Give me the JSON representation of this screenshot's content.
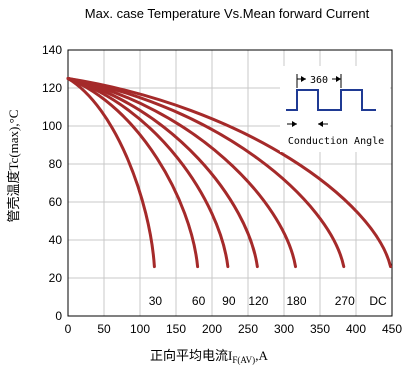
{
  "chart_data": {
    "type": "line",
    "title": "Max. case Temperature Vs.Mean forward Current",
    "xlabel_main": "正向平均电流I",
    "xlabel_sub": "F(AV)",
    "xlabel_unit": ",A",
    "ylabel": "管壳温度Tc(max),°C",
    "xlim": [
      0,
      450
    ],
    "ylim": [
      0,
      140
    ],
    "xticks": [
      0,
      50,
      100,
      150,
      200,
      250,
      300,
      350,
      400,
      450
    ],
    "yticks": [
      0,
      20,
      40,
      60,
      80,
      100,
      120,
      140
    ],
    "grid": true,
    "line_color": "#a52a2a",
    "series": [
      {
        "name": "30",
        "label": "30",
        "end_x": 120,
        "end_y": 26
      },
      {
        "name": "60",
        "label": "60",
        "end_x": 180,
        "end_y": 26
      },
      {
        "name": "90",
        "label": "90",
        "end_x": 222,
        "end_y": 26
      },
      {
        "name": "120",
        "label": "120",
        "end_x": 263,
        "end_y": 26
      },
      {
        "name": "180",
        "label": "180",
        "end_x": 316,
        "end_y": 26
      },
      {
        "name": "270",
        "label": "270",
        "end_x": 383,
        "end_y": 26
      },
      {
        "name": "DC",
        "label": "DC",
        "end_x": 448,
        "end_y": 26
      }
    ],
    "start": {
      "x": 0,
      "y": 125
    },
    "inset": {
      "period_label": "360",
      "angle_label": "Conduction Angle"
    }
  }
}
